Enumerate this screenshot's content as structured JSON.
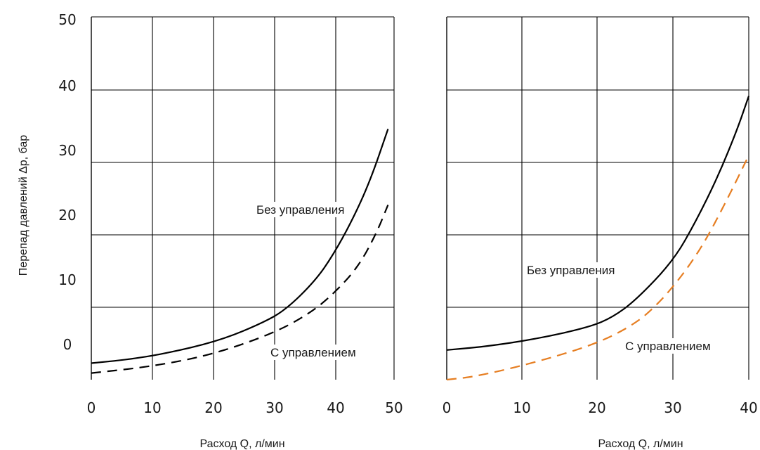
{
  "ylabel": "Перепад давлений Δр, бар",
  "chart_data": [
    {
      "type": "line",
      "xlabel": "Расход Q, л/мин",
      "ylabel": "Перепад давлений Δр, бар",
      "xlim": [
        0,
        50
      ],
      "ylim": [
        -5,
        50
      ],
      "x_ticks": [
        "0",
        "10",
        "20",
        "30",
        "40",
        "50"
      ],
      "y_ticks": [
        "0",
        "10",
        "20",
        "30",
        "40",
        "50"
      ],
      "grid": true,
      "series": [
        {
          "name": "Без управления",
          "style": "solid",
          "color": "#000000",
          "x": [
            0,
            7.5,
            15,
            22,
            28,
            32,
            37,
            40,
            43,
            46,
            49
          ],
          "y": [
            -2.5,
            -1.8,
            -0.5,
            1.2,
            3.5,
            5.5,
            10,
            14,
            19,
            25,
            33
          ]
        },
        {
          "name": "С управлением",
          "style": "dashed",
          "color": "#000000",
          "x": [
            0,
            10,
            20,
            30,
            36,
            40,
            44,
            47,
            49
          ],
          "y": [
            -4,
            -3,
            -1.2,
            2,
            5,
            8,
            12,
            17,
            21.5
          ]
        }
      ],
      "annotations": [
        {
          "text": "Без управления",
          "series": "Без управления"
        },
        {
          "text": "С управлением",
          "series": "С управлением"
        }
      ]
    },
    {
      "type": "line",
      "xlabel": "Расход Q, л/мин",
      "xlim": [
        0,
        40
      ],
      "ylim": [
        -5,
        50
      ],
      "x_ticks": [
        "0",
        "10",
        "20",
        "30",
        "40"
      ],
      "grid": true,
      "series": [
        {
          "name": "Без управления",
          "style": "solid",
          "color": "#000000",
          "x": [
            0,
            5,
            12,
            19,
            22,
            25,
            30,
            33,
            36,
            38.5,
            40
          ],
          "y": [
            -0.5,
            0,
            1.2,
            3,
            4.5,
            7,
            13,
            19,
            26,
            33,
            38
          ]
        },
        {
          "name": "С управлением",
          "style": "dashed",
          "color": "#E67E22",
          "x": [
            0,
            4,
            12,
            20,
            25,
            28,
            31,
            34,
            37,
            40
          ],
          "y": [
            -5,
            -4.5,
            -2.3,
            0.5,
            3.5,
            6.5,
            10.5,
            15.5,
            22,
            29
          ]
        }
      ],
      "annotations": [
        {
          "text": "Без управления",
          "series": "Без управления"
        },
        {
          "text": "С управлением",
          "series": "С управлением"
        }
      ]
    }
  ]
}
